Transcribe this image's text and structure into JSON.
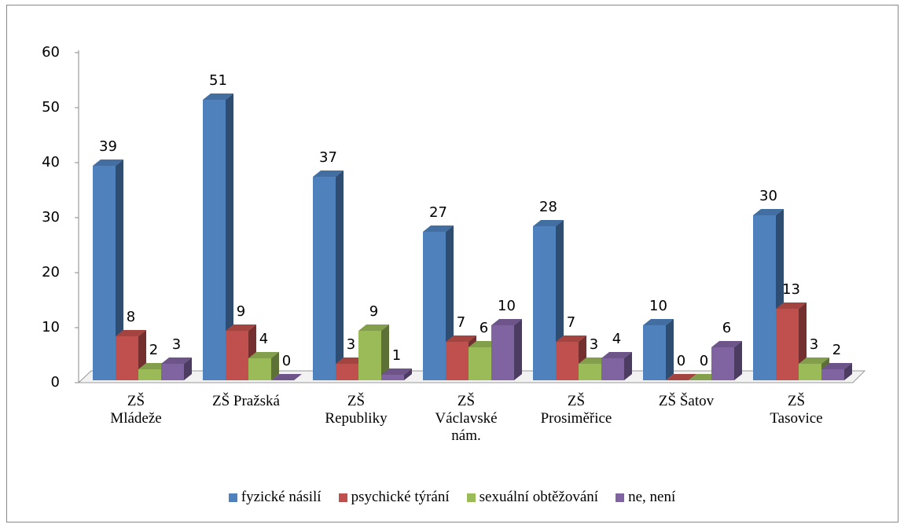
{
  "chart_data": {
    "type": "bar3d",
    "categories": [
      "ZŠ\nMládeže",
      "ZŠ Pražská",
      "ZŠ\nRepubliky",
      "ZŠ\nVáclavské\nnám.",
      "ZŠ\nProsiměřice",
      "ZŠ Šatov",
      "ZŠ\nTasovice"
    ],
    "series": [
      {
        "name": "fyzické násilí",
        "color": "#4f81bd",
        "values": [
          39,
          51,
          37,
          27,
          28,
          10,
          30
        ]
      },
      {
        "name": "psychické týrání",
        "color": "#c0504d",
        "values": [
          8,
          9,
          3,
          7,
          7,
          0,
          13
        ]
      },
      {
        "name": "sexuální obtěžování",
        "color": "#9bbb59",
        "values": [
          2,
          4,
          9,
          6,
          3,
          0,
          3
        ]
      },
      {
        "name": "ne, není",
        "color": "#8064a2",
        "values": [
          3,
          0,
          1,
          10,
          4,
          6,
          2
        ]
      }
    ],
    "ylim": [
      0,
      60
    ],
    "yticks": [
      0,
      10,
      20,
      30,
      40,
      50,
      60
    ],
    "grid": false,
    "legend": "bottom"
  }
}
